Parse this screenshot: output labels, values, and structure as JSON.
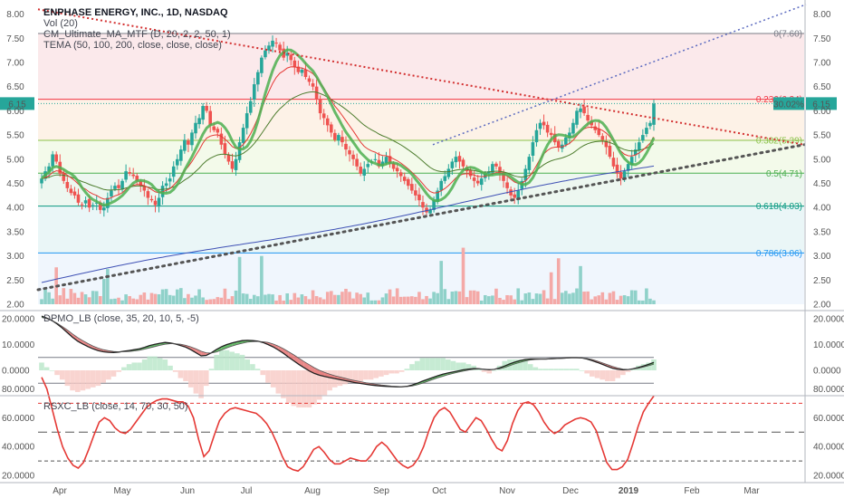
{
  "chart_data": [
    {
      "type": "candlestick",
      "symbol_title": "ENPHASE ENERGY, INC., 1D, NASDAQ",
      "legend": [
        "Vol (20)",
        "CM_Ultimate_MA_MTF (D, 20, 2, 2, 50, 1)",
        "TEMA (50, 100, 200, close, close, close)"
      ],
      "ylim": [
        1.95,
        8.15
      ],
      "y_ticks": [
        "8.00",
        "7.50",
        "7.00",
        "6.50",
        "6.00",
        "5.50",
        "5.00",
        "4.50",
        "4.00",
        "3.50",
        "3.00",
        "2.50",
        "2.00"
      ],
      "x_labels": [
        "Apr",
        "May",
        "Jun",
        "Jul",
        "Aug",
        "Sep",
        "Oct",
        "Nov",
        "Dec",
        "2019",
        "Feb",
        "Mar"
      ],
      "last_price": "6.15",
      "last_change": "30.02%",
      "fib_levels": [
        {
          "ratio": 0,
          "price": 7.6,
          "label": "0(7.60)",
          "color": "#787b86"
        },
        {
          "ratio": 0.236,
          "price": 6.24,
          "label": "0.236(6.24)",
          "color": "#f23645"
        },
        {
          "ratio": 0.382,
          "price": 5.39,
          "label": "0.382(5.39)",
          "color": "#8bc34a"
        },
        {
          "ratio": 0.5,
          "price": 4.71,
          "label": "0.5(4.71)",
          "color": "#4caf50"
        },
        {
          "ratio": 0.618,
          "price": 4.03,
          "label": "0.618(4.03)",
          "color": "#089981"
        },
        {
          "ratio": 0.786,
          "price": 3.06,
          "label": "0.786(3.06)",
          "color": "#2196f3"
        }
      ],
      "closes": [
        4.6,
        4.75,
        4.85,
        5.1,
        4.95,
        4.7,
        4.55,
        4.4,
        4.3,
        4.25,
        4.1,
        4.05,
        4.15,
        4.0,
        4.05,
        4.1,
        3.95,
        4.0,
        4.2,
        4.35,
        4.45,
        4.4,
        4.55,
        4.75,
        4.7,
        4.65,
        4.55,
        4.45,
        4.35,
        4.2,
        4.15,
        4.05,
        4.2,
        4.45,
        4.5,
        4.6,
        4.85,
        5.0,
        5.2,
        5.4,
        5.3,
        5.55,
        5.75,
        5.85,
        6.1,
        6.0,
        5.7,
        5.6,
        5.55,
        5.3,
        5.1,
        4.95,
        4.8,
        5.0,
        5.35,
        5.65,
        5.95,
        6.2,
        6.55,
        6.8,
        7.1,
        7.25,
        7.35,
        7.45,
        7.4,
        7.25,
        7.1,
        7.2,
        7.05,
        6.9,
        6.8,
        6.85,
        6.7,
        6.6,
        6.5,
        6.25,
        5.95,
        5.85,
        5.7,
        5.55,
        5.4,
        5.5,
        5.35,
        5.2,
        5.1,
        5.0,
        4.85,
        4.7,
        4.8,
        4.9,
        4.95,
        5.0,
        4.85,
        4.95,
        5.05,
        4.9,
        4.8,
        4.75,
        4.65,
        4.55,
        4.45,
        4.35,
        4.25,
        4.15,
        4.0,
        3.9,
        3.95,
        4.15,
        4.35,
        4.55,
        4.65,
        4.8,
        4.95,
        5.05,
        4.95,
        4.85,
        4.75,
        4.65,
        4.55,
        4.5,
        4.6,
        4.7,
        4.75,
        4.9,
        4.85,
        4.7,
        4.55,
        4.4,
        4.25,
        4.2,
        4.35,
        4.55,
        4.8,
        5.05,
        5.35,
        5.6,
        5.75,
        5.7,
        5.55,
        5.5,
        5.35,
        5.25,
        5.3,
        5.45,
        5.55,
        5.75,
        6.0,
        6.05,
        5.95,
        5.8,
        5.7,
        5.6,
        5.5,
        5.4,
        5.25,
        5.05,
        4.85,
        4.7,
        4.6,
        4.75,
        4.9,
        5.05,
        5.2,
        5.35,
        5.5,
        5.65,
        5.75,
        6.15
      ],
      "volume_label": "Vol (20)"
    },
    {
      "type": "line",
      "title": "DPMO_LB (close, 35, 20, 10, 5, -5)",
      "ylim": [
        -5,
        21
      ],
      "y_ticks": [
        "20.0000",
        "10.0000",
        "0.0000"
      ],
      "levels": [
        5,
        -5
      ],
      "dpmo": [
        21.0,
        20.2,
        19.3,
        18.0,
        16.4,
        14.6,
        12.8,
        11.3,
        10.2,
        9.2,
        8.3,
        7.6,
        7.2,
        7.0,
        6.9,
        7.1,
        7.4,
        7.7,
        8.0,
        8.3,
        8.9,
        9.6,
        10.1,
        10.5,
        10.8,
        10.6,
        10.2,
        9.6,
        9.0,
        8.0,
        6.8,
        5.6,
        5.8,
        6.8,
        8.1,
        9.2,
        10.0,
        10.6,
        11.1,
        11.5,
        11.6,
        11.5,
        11.3,
        10.8,
        10.0,
        9.1,
        7.9,
        6.6,
        5.1,
        3.7,
        2.3,
        1.0,
        -0.2,
        -1.2,
        -1.9,
        -2.4,
        -2.8,
        -3.2,
        -3.6,
        -4.0,
        -4.4,
        -4.8,
        -5.1,
        -5.4,
        -5.7,
        -5.9,
        -6.1,
        -6.2,
        -6.3,
        -6.4,
        -6.4,
        -6.2,
        -5.7,
        -5.0,
        -4.2,
        -3.5,
        -2.8,
        -2.1,
        -1.5,
        -1.0,
        -0.6,
        -0.2,
        0.2,
        0.5,
        0.7,
        0.6,
        0.4,
        0.2,
        0.4,
        0.9,
        1.7,
        2.5,
        3.2,
        3.8,
        4.2,
        4.4,
        4.4,
        4.4,
        4.4,
        4.5,
        4.6,
        4.7,
        4.8,
        4.9,
        4.9,
        4.8,
        4.4,
        3.8,
        3.1,
        2.3,
        1.5,
        0.8,
        0.4,
        0.2,
        0.3,
        0.6,
        1.1,
        1.7,
        2.3,
        3.1
      ],
      "signal": [
        20.5,
        20.0,
        19.3,
        18.3,
        17.0,
        15.6,
        14.1,
        12.7,
        11.5,
        10.4,
        9.4,
        8.6,
        8.0,
        7.6,
        7.3,
        7.2,
        7.2,
        7.3,
        7.5,
        7.8,
        8.2,
        8.7,
        9.2,
        9.7,
        10.1,
        10.3,
        10.3,
        10.1,
        9.7,
        9.1,
        8.3,
        7.4,
        6.8,
        6.7,
        7.1,
        7.9,
        8.7,
        9.4,
        10.0,
        10.5,
        10.9,
        11.1,
        11.2,
        11.1,
        10.8,
        10.2,
        9.4,
        8.4,
        7.2,
        6.0,
        4.7,
        3.4,
        2.2,
        1.0,
        0.0,
        -0.8,
        -1.5,
        -2.1,
        -2.6,
        -3.1,
        -3.6,
        -4.0,
        -4.4,
        -4.8,
        -5.1,
        -5.4,
        -5.7,
        -5.9,
        -6.1,
        -6.2,
        -6.3,
        -6.3,
        -6.1,
        -5.6,
        -5.0,
        -4.3,
        -3.6,
        -2.9,
        -2.3,
        -1.7,
        -1.2,
        -0.7,
        -0.3,
        0.1,
        0.4,
        0.5,
        0.5,
        0.4,
        0.4,
        0.6,
        1.1,
        1.8,
        2.5,
        3.1,
        3.6,
        4.0,
        4.2,
        4.3,
        4.3,
        4.4,
        4.5,
        4.6,
        4.7,
        4.8,
        4.8,
        4.8,
        4.6,
        4.2,
        3.6,
        2.9,
        2.2,
        1.5,
        0.9,
        0.5,
        0.4,
        0.5,
        0.8,
        1.3,
        1.8,
        2.4
      ]
    },
    {
      "type": "line",
      "title": "RSXC_LB (close, 14, 70, 30, 50)",
      "ylim": [
        18,
        92
      ],
      "y_ticks": [
        "80.0000",
        "60.0000",
        "40.0000",
        "20.0000"
      ],
      "levels": [
        70,
        50,
        30
      ],
      "values": [
        88,
        80,
        66,
        52,
        40,
        32,
        27,
        25,
        29,
        38,
        48,
        57,
        60,
        58,
        53,
        50,
        49,
        52,
        57,
        62,
        67,
        70,
        72,
        73,
        73,
        72,
        71,
        71,
        68,
        60,
        45,
        33,
        37,
        48,
        58,
        63,
        66,
        67,
        66,
        65,
        64,
        63,
        60,
        56,
        50,
        42,
        33,
        26,
        24,
        23,
        26,
        32,
        38,
        40,
        36,
        31,
        28,
        28,
        30,
        32,
        31,
        30,
        30,
        34,
        40,
        43,
        40,
        35,
        30,
        27,
        25,
        27,
        32,
        40,
        51,
        60,
        65,
        67,
        64,
        58,
        52,
        50,
        55,
        60,
        58,
        52,
        45,
        39,
        37,
        44,
        56,
        65,
        70,
        71,
        69,
        64,
        57,
        52,
        49,
        51,
        55,
        57,
        59,
        60,
        59,
        57,
        51,
        40,
        29,
        24,
        24,
        26,
        31,
        42,
        54,
        64,
        70,
        75
      ]
    }
  ]
}
